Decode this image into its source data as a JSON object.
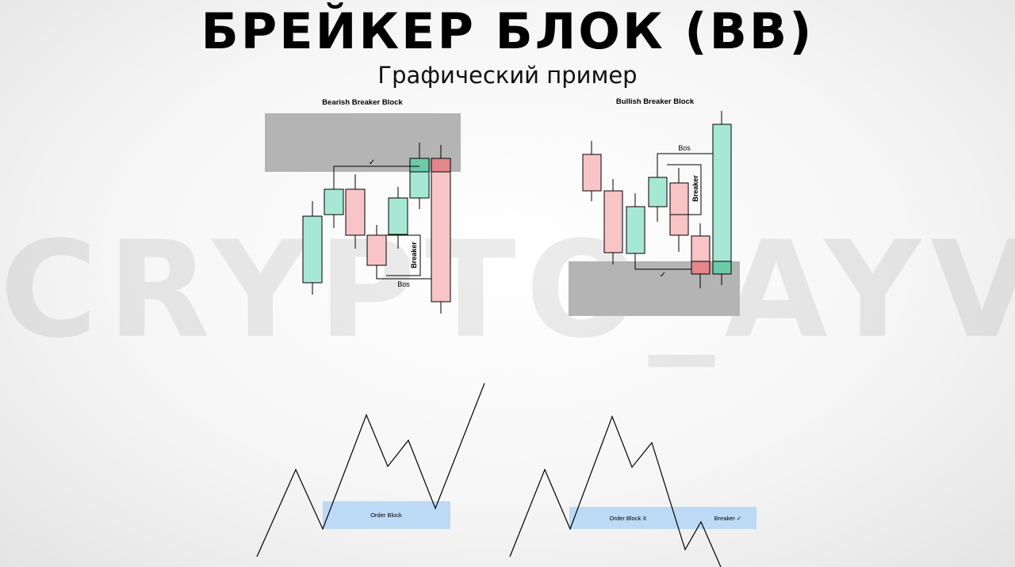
{
  "header": {
    "title": "БРЕЙКЕР БЛОК (BB)",
    "subtitle": "Графический пример"
  },
  "watermark": "CRYPTO_AYVA",
  "bearish": {
    "label": "Bearish Breaker Block",
    "breaker_label": "Breaker",
    "bos_label": "Bos",
    "check": "✓"
  },
  "bullish": {
    "label": "Bullish Breaker Block",
    "breaker_label": "Breaker",
    "bos_label": "Bos",
    "check": "✓"
  },
  "sketch_left": {
    "zone_label": "Order Block"
  },
  "sketch_right": {
    "zone1_label": "Order Block X",
    "zone2_label": "Breaker ✓"
  },
  "colors": {
    "bull": "#a7e8d4",
    "bull_dark": "#6fcaa9",
    "bear": "#f8c4c6",
    "bear_dark": "#e3878c",
    "zone_gray": "#b4b4b4",
    "zone_blue": "#bcd9f5"
  }
}
